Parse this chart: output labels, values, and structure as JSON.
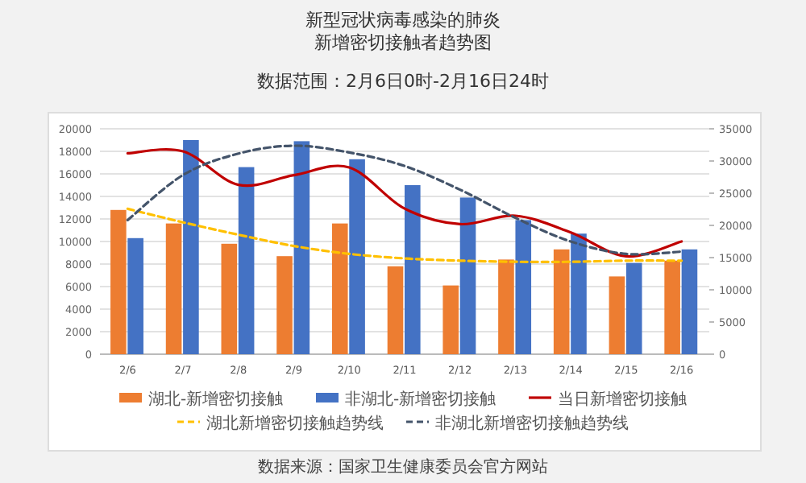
{
  "chart_data": {
    "type": "bar",
    "title": "新型冠状病毒感染的肺炎新增密切接触者趋势图",
    "subtitle": "数据范围：2月6日0时-2月16日24时",
    "categories": [
      "2/6",
      "2/7",
      "2/8",
      "2/9",
      "2/10",
      "2/11",
      "2/12",
      "2/13",
      "2/14",
      "2/15",
      "2/16"
    ],
    "series": [
      {
        "name": "湖北-新增密切接触",
        "color": "#ed7d31",
        "values": [
          12800,
          11600,
          9800,
          8700,
          11600,
          7800,
          6100,
          8400,
          9300,
          6900,
          8300
        ]
      },
      {
        "name": "非湖北-新增密切接触",
        "color": "#4472c4",
        "values": [
          10300,
          19000,
          16600,
          18900,
          17300,
          15000,
          13900,
          11900,
          10700,
          8100,
          9300
        ]
      },
      {
        "name": "当日新增密切接触",
        "type": "line",
        "axis": "y2",
        "color": "#c00000",
        "marker": "none",
        "line_style": "solid",
        "values": [
          31200,
          31500,
          26300,
          27800,
          29000,
          22600,
          20200,
          21500,
          18900,
          15200,
          17500
        ]
      },
      {
        "name": "湖北新增密切接触趋势线",
        "type": "line",
        "color": "#ffc000",
        "marker": "none",
        "line_style": "dashed",
        "values": [
          12900,
          11700,
          10600,
          9600,
          8900,
          8500,
          8300,
          8200,
          8200,
          8300,
          8300
        ]
      },
      {
        "name": "非湖北新增密切接触趋势线",
        "type": "line",
        "color": "#44546a",
        "marker": "none",
        "line_style": "dashed",
        "values": [
          11900,
          15900,
          17800,
          18500,
          17900,
          16700,
          14600,
          12100,
          10000,
          8900,
          9100
        ]
      }
    ],
    "ylim": [
      0,
      20000
    ],
    "yticks": [
      0,
      2000,
      4000,
      6000,
      8000,
      10000,
      12000,
      14000,
      16000,
      18000,
      20000
    ],
    "y2lim": [
      0,
      35000
    ],
    "y2ticks": [
      0,
      5000,
      10000,
      15000,
      20000,
      25000,
      30000,
      35000
    ],
    "grid": "y",
    "legend": "bottom",
    "annotations": [
      "数据来源：国家卫生健康委员会官方网站"
    ]
  }
}
